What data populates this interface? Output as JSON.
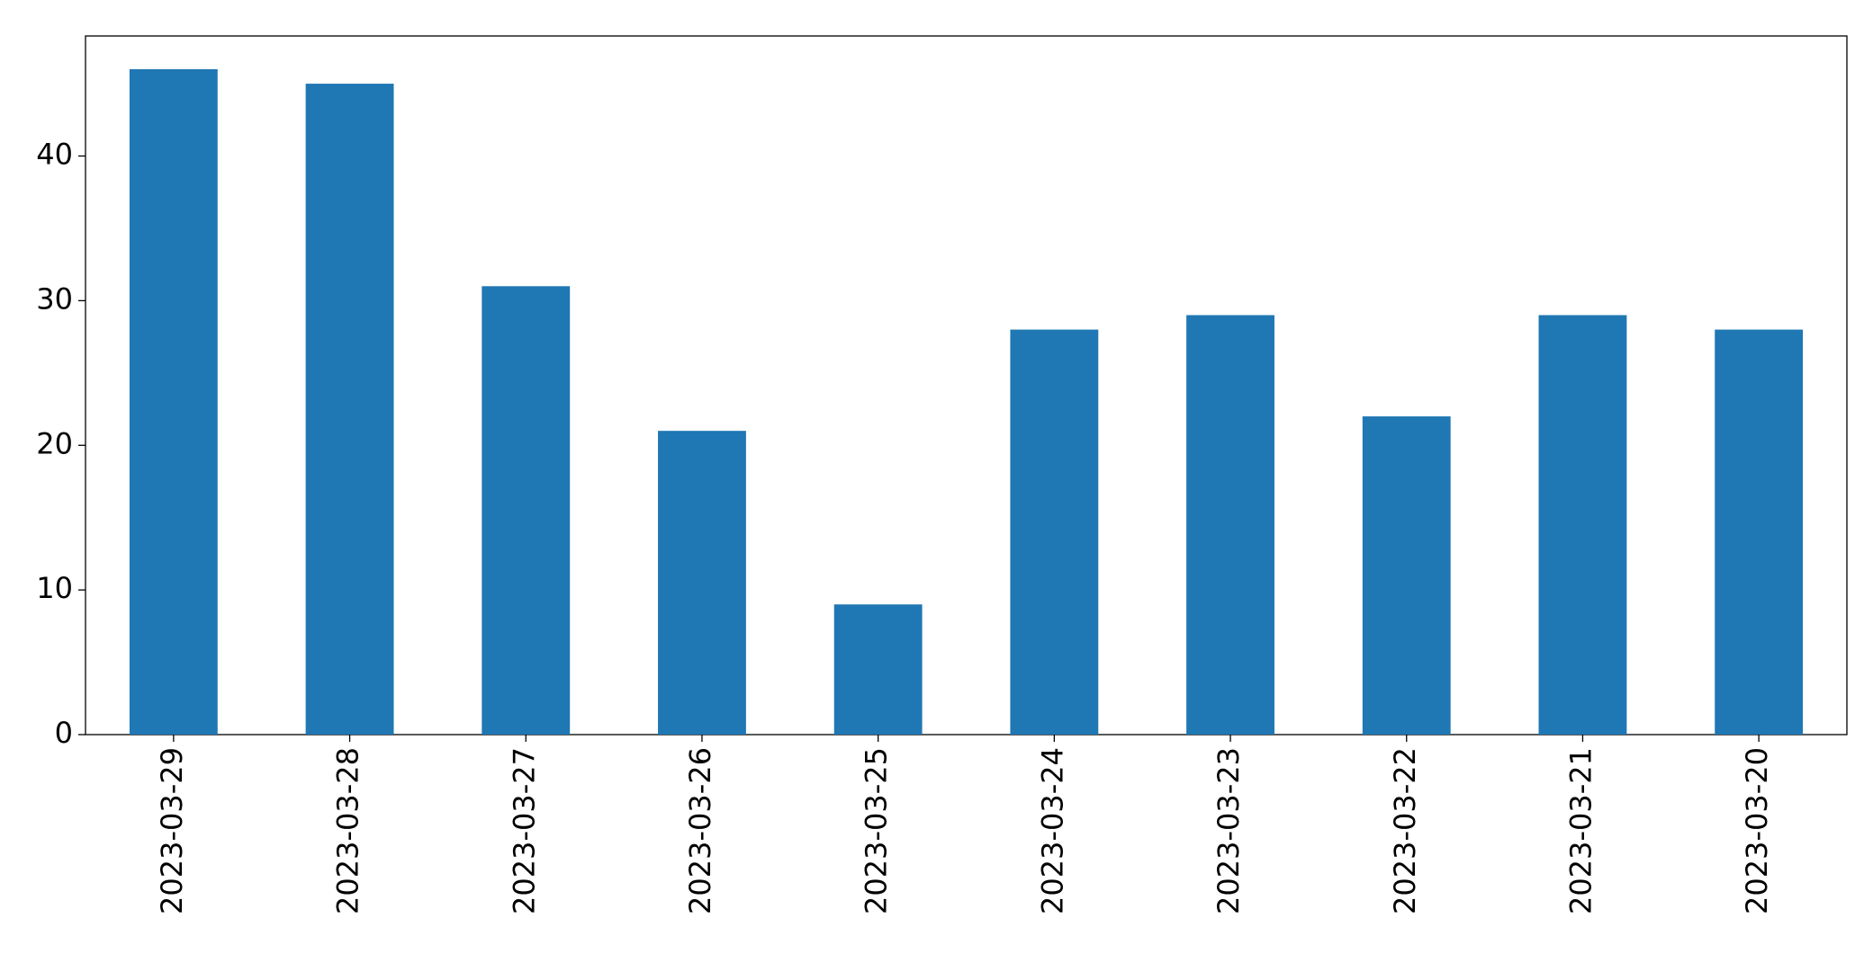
{
  "chart_data": {
    "type": "bar",
    "categories": [
      "2023-03-29",
      "2023-03-28",
      "2023-03-27",
      "2023-03-26",
      "2023-03-25",
      "2023-03-24",
      "2023-03-23",
      "2023-03-22",
      "2023-03-21",
      "2023-03-20"
    ],
    "values": [
      46,
      45,
      31,
      21,
      9,
      28,
      29,
      22,
      29,
      28
    ],
    "color": "#1f77b4",
    "ylim": [
      0,
      48.3
    ],
    "yticks": [
      0,
      10,
      20,
      30,
      40
    ],
    "grid": false
  }
}
